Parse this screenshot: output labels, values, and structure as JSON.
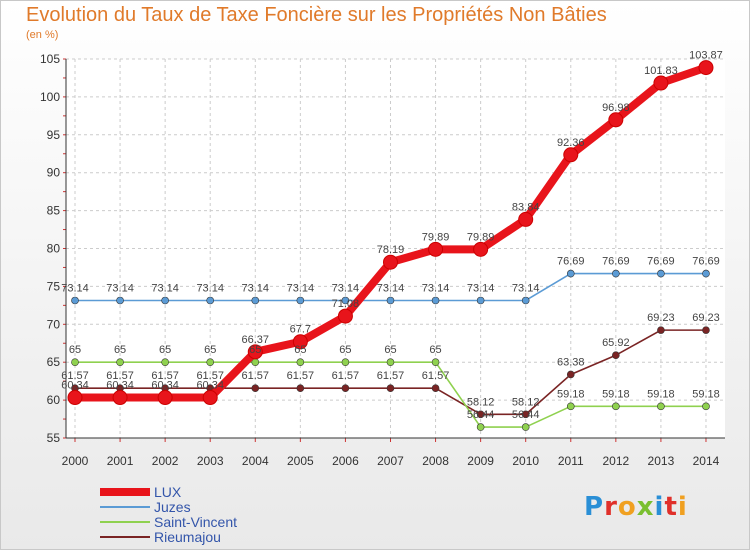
{
  "title": "Evolution du Taux de Taxe Foncière sur les Propriétés Non Bâties",
  "unit_label": "(en %)",
  "logo": {
    "text": "Proxiti",
    "letters": [
      "P",
      "r",
      "o",
      "x",
      "i",
      "t",
      "i"
    ],
    "colors": [
      "#2a8fd6",
      "#e0302a",
      "#f0a020",
      "#7abf30",
      "#2a8fd6",
      "#e0302a",
      "#f0a020"
    ]
  },
  "chart_data": {
    "type": "line",
    "title": "Evolution du Taux de Taxe Foncière sur les Propriétés Non Bâties",
    "ylabel": "(en %)",
    "xlabel": "",
    "ylim": [
      55,
      105
    ],
    "yticks": [
      55,
      60,
      65,
      70,
      75,
      80,
      85,
      90,
      95,
      100,
      105
    ],
    "categories": [
      "2000",
      "2001",
      "2002",
      "2003",
      "2004",
      "2005",
      "2006",
      "2007",
      "2008",
      "2009",
      "2010",
      "2011",
      "2012",
      "2013",
      "2014"
    ],
    "grid": true,
    "legend": "bottom-left",
    "series": [
      {
        "name": "LUX",
        "color": "#e8141b",
        "values": [
          60.34,
          60.34,
          60.34,
          60.34,
          66.37,
          67.7,
          71.08,
          78.19,
          79.89,
          79.89,
          83.84,
          92.36,
          96.98,
          101.83,
          103.87
        ],
        "labels": [
          "60.34",
          "60.34",
          "60.34",
          "60.34",
          "66.37",
          "67.7",
          "71.08",
          "78.19",
          "79.89",
          "79.89",
          "83.84",
          "92.36",
          "96.98",
          "101.83",
          "103.87"
        ]
      },
      {
        "name": "Juzes",
        "color": "#5b9bd5",
        "values": [
          73.14,
          73.14,
          73.14,
          73.14,
          73.14,
          73.14,
          73.14,
          73.14,
          73.14,
          73.14,
          73.14,
          76.69,
          76.69,
          76.69,
          76.69
        ],
        "labels": [
          "73.14",
          "73.14",
          "73.14",
          "73.14",
          "73.14",
          "73.14",
          "73.14",
          "73.14",
          "73.14",
          "73.14",
          "73.14",
          "76.69",
          "76.69",
          "76.69",
          "76.69"
        ]
      },
      {
        "name": "Saint-Vincent",
        "color": "#8fd14f",
        "values": [
          65,
          65,
          65,
          65,
          65,
          65,
          65,
          65,
          65,
          56.44,
          56.44,
          59.18,
          59.18,
          59.18,
          59.18
        ],
        "labels": [
          "65",
          "65",
          "65",
          "65",
          "65",
          "65",
          "65",
          "65",
          "65",
          "56.44",
          "56.44",
          "59.18",
          "59.18",
          "59.18",
          "59.18"
        ]
      },
      {
        "name": "Rieumajou",
        "color": "#7a2424",
        "values": [
          61.57,
          61.57,
          61.57,
          61.57,
          61.57,
          61.57,
          61.57,
          61.57,
          61.57,
          58.12,
          58.12,
          63.38,
          65.92,
          69.23,
          69.23
        ],
        "labels": [
          "61.57",
          "61.57",
          "61.57",
          "61.57",
          "61.57",
          "61.57",
          "61.57",
          "61.57",
          "61.57",
          "58.12",
          "58.12",
          "63.38",
          "65.92",
          "69.23",
          "69.23"
        ]
      }
    ]
  }
}
